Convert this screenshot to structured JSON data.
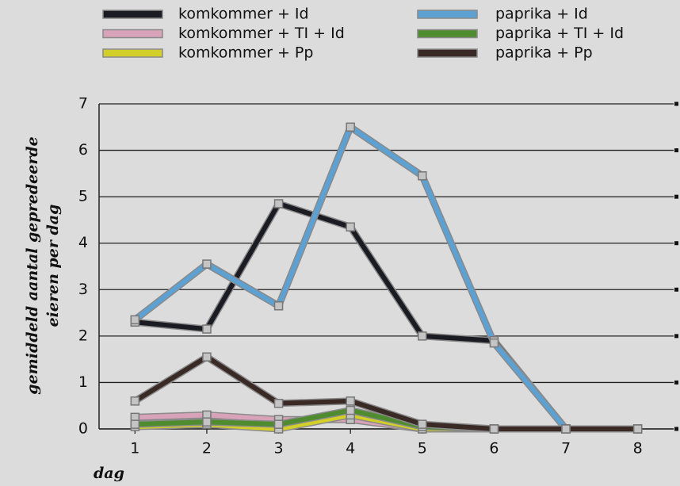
{
  "chart_data": {
    "type": "line",
    "xlabel": "dag",
    "ylabel": [
      "gemiddeld aantal gepredeerde",
      "eieren per dag"
    ],
    "x": [
      1,
      2,
      3,
      4,
      5,
      6,
      7,
      8
    ],
    "xlim": [
      0.5,
      8.5
    ],
    "xticks": [
      1,
      2,
      3,
      4,
      5,
      6,
      7,
      8
    ],
    "ylim": [
      0,
      7
    ],
    "yticks": [
      0,
      1,
      2,
      3,
      4,
      5,
      6,
      7
    ],
    "grid": true,
    "legend": "top",
    "series": [
      {
        "name": "komkommer + Id",
        "color": "#1b1b24",
        "values": [
          2.3,
          2.15,
          4.85,
          4.35,
          2.0,
          1.9,
          0,
          null
        ]
      },
      {
        "name": "komkommer + TI + Id",
        "color": "#d8a3b8",
        "values": [
          0.25,
          0.3,
          0.2,
          0.2,
          0,
          0,
          0,
          0
        ]
      },
      {
        "name": "komkommer + Pp",
        "color": "#d2cf2a",
        "values": [
          0.05,
          0.1,
          0,
          0.3,
          0,
          0,
          0,
          0
        ]
      },
      {
        "name": "paprika + Id",
        "color": "#5da0d2",
        "values": [
          2.35,
          3.55,
          2.65,
          6.5,
          5.45,
          1.85,
          0,
          null
        ]
      },
      {
        "name": "paprika + TI + Id",
        "color": "#4f8c2f",
        "values": [
          0.1,
          0.15,
          0.1,
          0.4,
          0.05,
          0,
          0,
          0
        ]
      },
      {
        "name": "paprika + Pp",
        "color": "#3a2a25",
        "values": [
          0.6,
          1.55,
          0.55,
          0.6,
          0.1,
          0,
          0,
          0
        ]
      }
    ]
  }
}
